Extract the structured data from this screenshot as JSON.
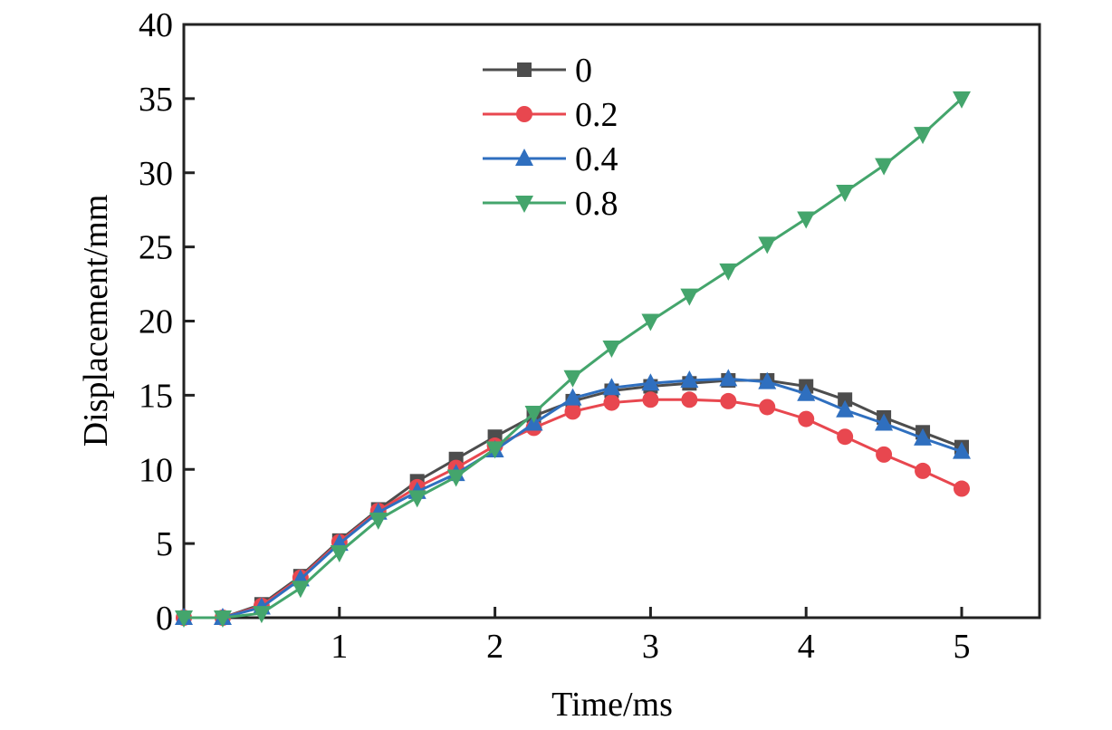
{
  "chart_data": {
    "type": "line",
    "title": "",
    "xlabel": "Time/ms",
    "ylabel": "Displacement/mm",
    "xlim": [
      0,
      5.5
    ],
    "ylim": [
      0,
      40
    ],
    "xticks": [
      1,
      2,
      3,
      4,
      5
    ],
    "yticks": [
      0,
      5,
      10,
      15,
      20,
      25,
      30,
      35,
      40
    ],
    "grid": false,
    "legend_position": "top-center",
    "x": [
      0,
      0.25,
      0.5,
      0.75,
      1,
      1.25,
      1.5,
      1.75,
      2,
      2.25,
      2.5,
      2.75,
      3,
      3.25,
      3.5,
      3.75,
      4,
      4.25,
      4.5,
      4.75,
      5
    ],
    "series": [
      {
        "name": "0",
        "color": "#4d4d4d",
        "marker": "square",
        "values": [
          0,
          0,
          0.9,
          2.8,
          5.2,
          7.3,
          9.2,
          10.7,
          12.2,
          13.6,
          14.6,
          15.3,
          15.6,
          15.8,
          16.0,
          16.0,
          15.6,
          14.7,
          13.5,
          12.5,
          11.5
        ]
      },
      {
        "name": "0.2",
        "color": "#e8474f",
        "marker": "circle",
        "values": [
          0,
          0,
          0.8,
          2.7,
          5.1,
          7.2,
          8.8,
          10.1,
          11.6,
          12.8,
          13.9,
          14.5,
          14.7,
          14.7,
          14.6,
          14.2,
          13.4,
          12.2,
          11.0,
          9.9,
          8.7
        ]
      },
      {
        "name": "0.4",
        "color": "#2f6fbf",
        "marker": "triangle-up",
        "values": [
          0,
          0,
          0.7,
          2.6,
          5.0,
          7.1,
          8.5,
          9.7,
          11.3,
          13.1,
          14.8,
          15.5,
          15.8,
          16.0,
          16.1,
          15.9,
          15.1,
          14.0,
          13.1,
          12.1,
          11.2
        ]
      },
      {
        "name": "0.8",
        "color": "#44a56c",
        "marker": "triangle-down",
        "values": [
          0,
          0,
          0.3,
          2.0,
          4.4,
          6.6,
          8.1,
          9.5,
          11.4,
          13.8,
          16.2,
          18.2,
          20.0,
          21.7,
          23.4,
          25.2,
          26.9,
          28.7,
          30.5,
          32.6,
          35.0
        ]
      }
    ]
  }
}
